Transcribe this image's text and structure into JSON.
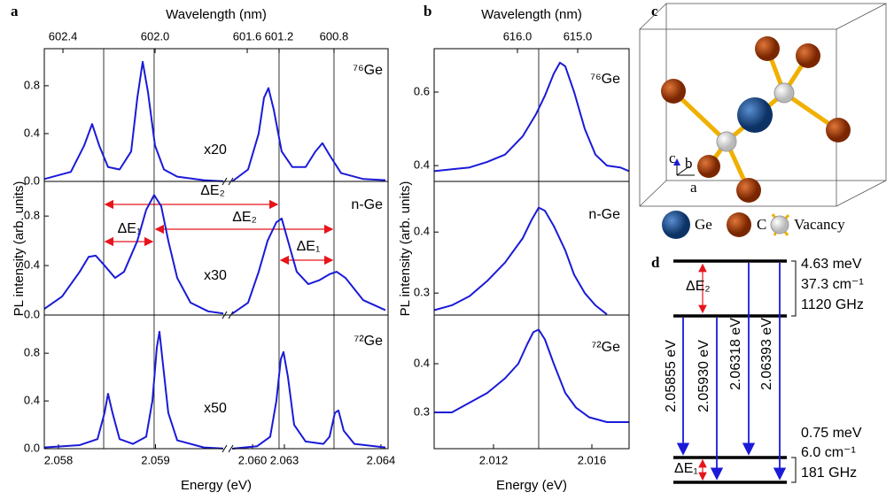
{
  "panel_labels": [
    "a",
    "b",
    "c",
    "d"
  ],
  "chart_data": [
    {
      "type": "line",
      "color": "#1a1ad8",
      "xlabel": "Energy (eV)",
      "ylabel": "PL intensity (arb. units)",
      "top_xlabel": "Wavelength (nm)",
      "x_segments": [
        {
          "xlim": [
            2.057854,
            2.06
          ],
          "xticks": [
            2.058,
            2.059,
            {
              "value": 2.06,
              "label": "2.060"
            }
          ],
          "top_xlim": [
            602.481,
            601.577
          ],
          "top_xticks": [
            602.4,
            {
              "value": 602,
              "label": "602.0"
            },
            601.6
          ],
          "reference_lines": [
            2.058466,
            2.058986
          ]
        },
        {
          "xlim": [
            2.062413,
            2.064074
          ],
          "xticks": [
            2.063,
            2.064
          ],
          "top_xlim": [
            601.574,
            600.406
          ],
          "top_xticks": [
            601.2,
            600.8
          ],
          "reference_lines": [
            2.062945,
            2.063514
          ]
        }
      ],
      "subplots": [
        {
          "label": "⁷⁶Ge",
          "multiplier": "x20",
          "ylim": [
            0,
            1.11
          ],
          "yticks": [
            {
              "value": 0,
              "label": "0.0"
            },
            0.4,
            0.8
          ],
          "segments": [
            {
              "x": [
                2.057854,
                2.058128,
                2.058265,
                2.058347,
                2.05842,
                2.058511,
                2.05863,
                2.058749,
                2.058813,
                2.058868,
                2.058922,
                2.058995,
                2.059087,
                2.059224,
                2.059498,
                2.059726
              ],
              "y": [
                0.02,
                0.08,
                0.3,
                0.48,
                0.3,
                0.12,
                0.1,
                0.25,
                0.7,
                1.0,
                0.75,
                0.3,
                0.1,
                0.04,
                0.01,
                0.0
              ]
            },
            {
              "x": [
                2.062459,
                2.062624,
                2.062734,
                2.062789,
                2.062835,
                2.06289,
                2.062972,
                2.063083,
                2.06322,
                2.063321,
                2.063394,
                2.063468,
                2.063587,
                2.063817,
                2.064046
              ],
              "y": [
                0.0,
                0.1,
                0.4,
                0.7,
                0.78,
                0.6,
                0.25,
                0.12,
                0.12,
                0.25,
                0.32,
                0.22,
                0.07,
                0.02,
                0.01
              ]
            }
          ]
        },
        {
          "label": "n-Ge",
          "multiplier": "x30",
          "ylim": [
            0,
            1.08
          ],
          "yticks": [
            {
              "value": 0,
              "label": "0.0"
            },
            0.4,
            0.8
          ],
          "segments": [
            {
              "x": [
                2.057854,
                2.058037,
                2.058219,
                2.058311,
                2.058384,
                2.058475,
                2.058584,
                2.058676,
                2.058813,
                2.058904,
                2.058986,
                2.059059,
                2.059132,
                2.059224,
                2.059361,
                2.059543,
                2.059726
              ],
              "y": [
                0.05,
                0.15,
                0.35,
                0.47,
                0.48,
                0.4,
                0.3,
                0.35,
                0.6,
                0.85,
                0.97,
                0.88,
                0.6,
                0.3,
                0.1,
                0.03,
                0.01
              ]
            },
            {
              "x": [
                2.062459,
                2.062624,
                2.062734,
                2.062826,
                2.062917,
                2.062972,
                2.063037,
                2.063128,
                2.063248,
                2.063358,
                2.063468,
                2.063541,
                2.063633,
                2.063817,
                2.064046
              ],
              "y": [
                0.01,
                0.1,
                0.35,
                0.6,
                0.75,
                0.78,
                0.6,
                0.35,
                0.25,
                0.28,
                0.33,
                0.35,
                0.3,
                0.12,
                0.04
              ]
            }
          ]
        },
        {
          "label": "⁷²Ge",
          "multiplier": "x50",
          "ylim": [
            0,
            1.12
          ],
          "yticks": [
            {
              "value": 0,
              "label": "0.0"
            },
            0.4,
            0.8
          ],
          "segments": [
            {
              "x": [
                2.057854,
                2.058219,
                2.058402,
                2.058475,
                2.058511,
                2.058557,
                2.05863,
                2.058767,
                2.058904,
                2.058968,
                2.059014,
                2.059041,
                2.059078,
                2.059132,
                2.059224,
                2.059498,
                2.059726
              ],
              "y": [
                0.01,
                0.03,
                0.08,
                0.3,
                0.46,
                0.3,
                0.08,
                0.04,
                0.1,
                0.4,
                0.85,
                0.98,
                0.7,
                0.3,
                0.07,
                0.01,
                0.0
              ]
            },
            {
              "x": [
                2.062459,
                2.062716,
                2.062853,
                2.062917,
                2.062963,
                2.062991,
                2.063037,
                2.063101,
                2.06322,
                2.063404,
                2.063468,
                2.063523,
                2.06356,
                2.063615,
                2.063725,
                2.064046
              ],
              "y": [
                0.0,
                0.02,
                0.1,
                0.4,
                0.75,
                0.81,
                0.6,
                0.2,
                0.06,
                0.04,
                0.1,
                0.3,
                0.32,
                0.15,
                0.04,
                0.01
              ]
            }
          ]
        }
      ],
      "annotations": [
        "ΔE₂",
        "ΔE₂",
        "ΔE₁",
        "ΔE₁"
      ]
    },
    {
      "type": "line",
      "color": "#1a1ad8",
      "xlabel": "Energy (eV)",
      "ylabel": "PL intensity (arb. units)",
      "top_xlabel": "Wavelength (nm)",
      "x_segments": [
        {
          "xlim": [
            2.009586,
            2.017514
          ],
          "xticks": [
            2.012,
            2.016
          ],
          "top_xlim": [
            617.382,
            614.147
          ],
          "top_xticks": [
            {
              "value": 616,
              "label": "616.0"
            },
            {
              "value": 615,
              "label": "615.0"
            }
          ],
          "reference_lines": [
            2.013838
          ]
        }
      ],
      "subplots": [
        {
          "label": "⁷⁶Ge",
          "ylim": [
            0.357,
            0.718
          ],
          "yticks": [
            0.4,
            0.6
          ],
          "segments": [
            {
              "x": [
                2.009586,
                2.010307,
                2.011027,
                2.011748,
                2.012469,
                2.01319,
                2.01373,
                2.01409,
                2.014451,
                2.014703,
                2.014919,
                2.01528,
                2.015712,
                2.016145,
                2.016613,
                2.017154,
                2.017514
              ],
              "y": [
                0.385,
                0.39,
                0.395,
                0.41,
                0.43,
                0.48,
                0.54,
                0.59,
                0.65,
                0.68,
                0.67,
                0.6,
                0.5,
                0.43,
                0.4,
                0.395,
                0.385
              ]
            }
          ]
        },
        {
          "label": "n-Ge",
          "ylim": [
            0.264,
            0.483
          ],
          "yticks": [
            0.3,
            0.4
          ],
          "segments": [
            {
              "x": [
                2.009586,
                2.010307,
                2.011027,
                2.011748,
                2.012469,
                2.01319,
                2.01355,
                2.013838,
                2.01409,
                2.014451,
                2.014919,
                2.01528,
                2.015712,
                2.016145,
                2.016613
              ],
              "y": [
                0.272,
                0.28,
                0.295,
                0.32,
                0.35,
                0.39,
                0.42,
                0.44,
                0.435,
                0.41,
                0.37,
                0.33,
                0.3,
                0.28,
                0.265
              ]
            }
          ]
        },
        {
          "label": "⁷²Ge",
          "ylim": [
            0.2255,
            0.5
          ],
          "yticks": [
            0.3,
            0.4
          ],
          "segments": [
            {
              "x": [
                2.009586,
                2.010307,
                2.011027,
                2.011748,
                2.012469,
                2.013009,
                2.01337,
                2.013622,
                2.013838,
                2.01409,
                2.014451,
                2.014919,
                2.015352,
                2.015892,
                2.016613,
                2.017514
              ],
              "y": [
                0.3,
                0.3,
                0.32,
                0.34,
                0.37,
                0.4,
                0.44,
                0.465,
                0.47,
                0.45,
                0.4,
                0.34,
                0.31,
                0.29,
                0.28,
                0.28
              ]
            }
          ]
        }
      ]
    }
  ],
  "crystal": {
    "axes": [
      "c",
      "b",
      "a"
    ],
    "legend": [
      "Ge",
      "C",
      "Vacancy"
    ]
  },
  "levels": {
    "upper_gap": {
      "label": "ΔE₂",
      "values": [
        "4.63 meV",
        "37.3 cm⁻¹",
        "1120 GHz"
      ]
    },
    "lower_gap": {
      "label": "ΔE₁",
      "values": [
        "0.75 meV",
        "6.0 cm⁻¹",
        "181 GHz"
      ]
    },
    "transitions": [
      "2.05855 eV",
      "2.05930 eV",
      "2.06318 eV",
      "2.06393 eV"
    ]
  }
}
